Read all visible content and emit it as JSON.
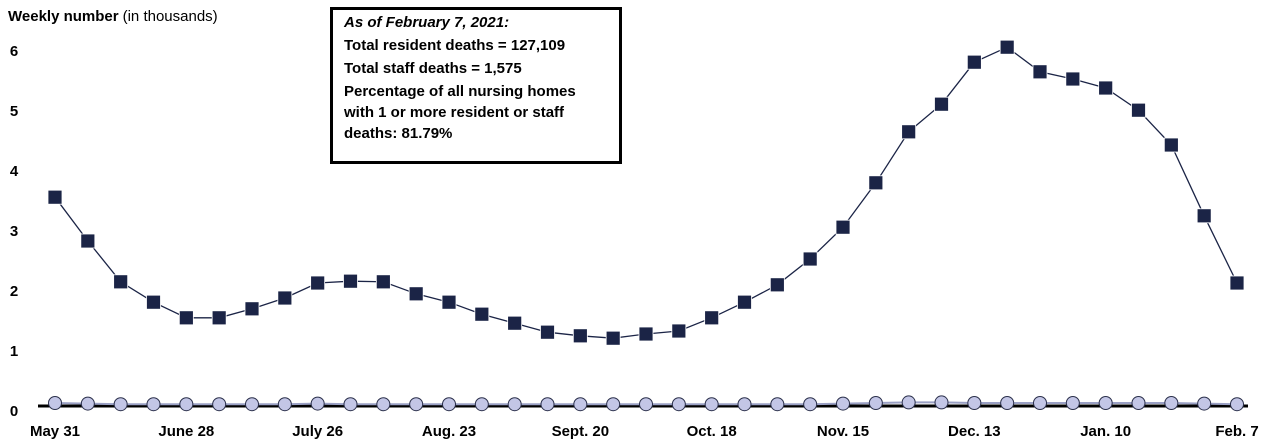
{
  "chart_data": {
    "type": "line",
    "ylabel": "Weekly number",
    "ylabel_note": "(in thousands)",
    "annotation": {
      "title": "As of February 7, 2021:",
      "lines": [
        "Total resident deaths = 127,109",
        "Total staff deaths = 1,575",
        "Percentage of all nursing homes with 1 or more resident or staff deaths: 81.79%"
      ]
    },
    "categories": [
      "May 31",
      null,
      null,
      null,
      "June 28",
      null,
      null,
      null,
      "July 26",
      null,
      null,
      null,
      "Aug. 23",
      null,
      null,
      null,
      "Sept. 20",
      null,
      null,
      null,
      "Oct. 18",
      null,
      null,
      null,
      "Nov. 15",
      null,
      null,
      null,
      "Dec. 13",
      null,
      null,
      null,
      "Jan. 10",
      null,
      null,
      null,
      "Feb. 7"
    ],
    "series": [
      {
        "color": "#1b2446",
        "marker": "square",
        "values": [
          3.48,
          2.75,
          2.07,
          1.73,
          1.47,
          1.47,
          1.62,
          1.8,
          2.05,
          2.08,
          2.07,
          1.87,
          1.73,
          1.53,
          1.38,
          1.23,
          1.17,
          1.13,
          1.2,
          1.25,
          1.47,
          1.73,
          2.02,
          2.45,
          2.98,
          3.72,
          4.57,
          5.03,
          5.73,
          5.98,
          5.57,
          5.45,
          5.3,
          4.93,
          4.35,
          3.17,
          2.05
        ]
      },
      {
        "color": "#c3c6e6",
        "marker": "circle",
        "values": [
          0.05,
          0.04,
          0.03,
          0.03,
          0.03,
          0.03,
          0.03,
          0.03,
          0.04,
          0.03,
          0.03,
          0.03,
          0.03,
          0.03,
          0.03,
          0.03,
          0.03,
          0.03,
          0.03,
          0.03,
          0.03,
          0.03,
          0.03,
          0.03,
          0.04,
          0.05,
          0.06,
          0.06,
          0.05,
          0.05,
          0.05,
          0.05,
          0.05,
          0.05,
          0.05,
          0.04,
          0.03
        ]
      }
    ],
    "ylim": [
      0,
      6.3
    ],
    "yticks": [
      0,
      1,
      2,
      3,
      4,
      5,
      6
    ]
  }
}
